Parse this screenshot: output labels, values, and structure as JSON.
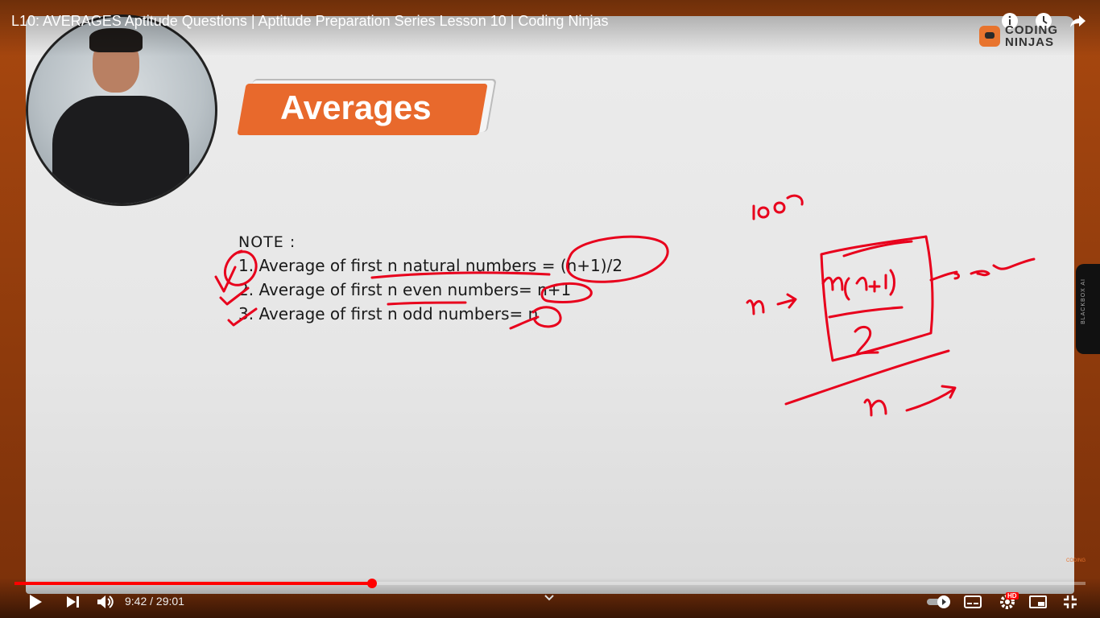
{
  "video": {
    "title": "L10: AVERAGES Aptitude Questions | Aptitude Preparation Series Lesson 10 | Coding Ninjas",
    "current_time": "9:42",
    "duration": "29:01",
    "time_display": "9:42 / 29:01",
    "progress_fraction": 0.334
  },
  "brand": {
    "line1": "CODING",
    "line2": "NINJAS",
    "accent": "#e8692c"
  },
  "slide": {
    "heading": "Averages",
    "note_heading": "NOTE :",
    "items": [
      "1. Average of first n natural numbers = (n+1)/2",
      "2. Average of first n even numbers= n+1",
      "3. Average of first n odd numbers= n"
    ]
  },
  "side_panel": {
    "label": "BLACKBOX AI"
  },
  "icons": {
    "top": [
      "info-icon",
      "watch-later-icon",
      "share-icon"
    ],
    "controls_left": [
      "play-icon",
      "next-icon",
      "volume-icon"
    ],
    "controls_right": [
      "autoplay-toggle",
      "subtitles-icon",
      "settings-icon",
      "miniplayer-icon",
      "exit-fullscreen-icon"
    ]
  },
  "hd_badge": "HD",
  "colors": {
    "progress": "#ff0000",
    "ink": "#e8001c"
  }
}
